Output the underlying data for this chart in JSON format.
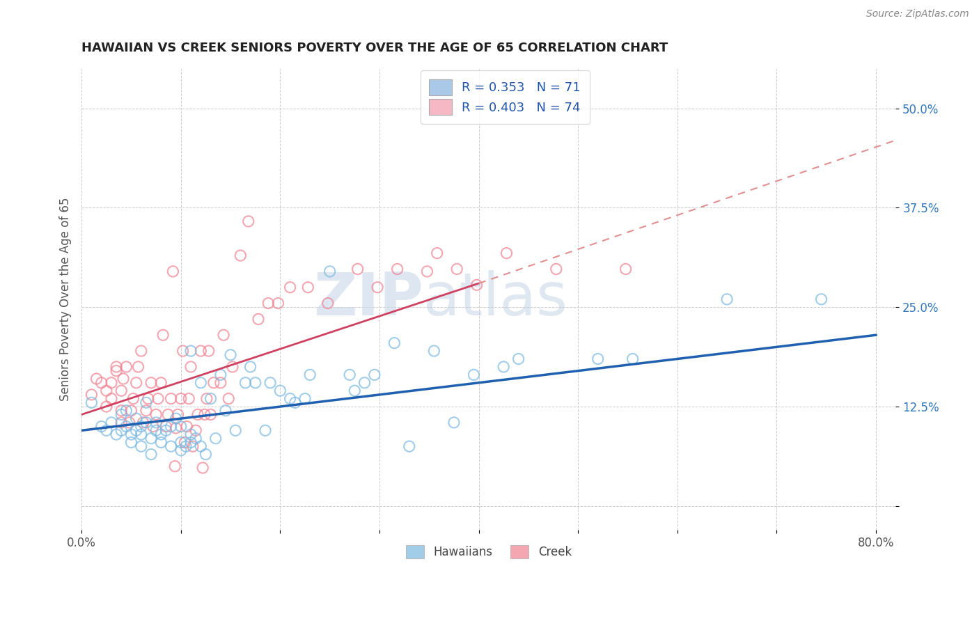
{
  "title": "HAWAIIAN VS CREEK SENIORS POVERTY OVER THE AGE OF 65 CORRELATION CHART",
  "source": "Source: ZipAtlas.com",
  "ylabel": "Seniors Poverty Over the Age of 65",
  "xlim": [
    0.0,
    0.82
  ],
  "ylim": [
    -0.03,
    0.55
  ],
  "ytick_positions": [
    0.0,
    0.125,
    0.25,
    0.375,
    0.5
  ],
  "ytick_labels": [
    "",
    "12.5%",
    "25.0%",
    "37.5%",
    "50.0%"
  ],
  "xtick_positions": [
    0.0,
    0.1,
    0.2,
    0.3,
    0.4,
    0.5,
    0.6,
    0.7,
    0.8
  ],
  "xticklabels": [
    "0.0%",
    "",
    "",
    "",
    "",
    "",
    "",
    "",
    "80.0%"
  ],
  "legend_entries": [
    {
      "label": "R = 0.353   N = 71",
      "color": "#aac9e8"
    },
    {
      "label": "R = 0.403   N = 74",
      "color": "#f5b8c4"
    }
  ],
  "hawaiians_color": "#7ab8e0",
  "creek_color": "#f08090",
  "hawaiians_line_color": "#2060b0",
  "creek_line_solid_color": "#d04060",
  "creek_line_dash_color": "#e09090",
  "watermark_zip": "ZIP",
  "watermark_atlas": "atlas",
  "hawaiians_scatter": [
    [
      0.01,
      0.13
    ],
    [
      0.02,
      0.1
    ],
    [
      0.025,
      0.095
    ],
    [
      0.03,
      0.105
    ],
    [
      0.035,
      0.09
    ],
    [
      0.04,
      0.095
    ],
    [
      0.04,
      0.115
    ],
    [
      0.045,
      0.1
    ],
    [
      0.045,
      0.12
    ],
    [
      0.05,
      0.08
    ],
    [
      0.05,
      0.09
    ],
    [
      0.055,
      0.095
    ],
    [
      0.055,
      0.11
    ],
    [
      0.06,
      0.075
    ],
    [
      0.06,
      0.09
    ],
    [
      0.06,
      0.1
    ],
    [
      0.065,
      0.105
    ],
    [
      0.065,
      0.13
    ],
    [
      0.07,
      0.065
    ],
    [
      0.07,
      0.085
    ],
    [
      0.075,
      0.095
    ],
    [
      0.075,
      0.105
    ],
    [
      0.08,
      0.08
    ],
    [
      0.08,
      0.09
    ],
    [
      0.085,
      0.095
    ],
    [
      0.09,
      0.075
    ],
    [
      0.09,
      0.1
    ],
    [
      0.095,
      0.11
    ],
    [
      0.1,
      0.07
    ],
    [
      0.1,
      0.08
    ],
    [
      0.1,
      0.1
    ],
    [
      0.105,
      0.075
    ],
    [
      0.11,
      0.08
    ],
    [
      0.11,
      0.09
    ],
    [
      0.11,
      0.195
    ],
    [
      0.115,
      0.085
    ],
    [
      0.12,
      0.075
    ],
    [
      0.12,
      0.155
    ],
    [
      0.125,
      0.065
    ],
    [
      0.13,
      0.135
    ],
    [
      0.135,
      0.085
    ],
    [
      0.14,
      0.165
    ],
    [
      0.145,
      0.12
    ],
    [
      0.15,
      0.19
    ],
    [
      0.155,
      0.095
    ],
    [
      0.165,
      0.155
    ],
    [
      0.17,
      0.175
    ],
    [
      0.175,
      0.155
    ],
    [
      0.185,
      0.095
    ],
    [
      0.19,
      0.155
    ],
    [
      0.2,
      0.145
    ],
    [
      0.21,
      0.135
    ],
    [
      0.215,
      0.13
    ],
    [
      0.225,
      0.135
    ],
    [
      0.23,
      0.165
    ],
    [
      0.25,
      0.295
    ],
    [
      0.27,
      0.165
    ],
    [
      0.275,
      0.145
    ],
    [
      0.285,
      0.155
    ],
    [
      0.295,
      0.165
    ],
    [
      0.315,
      0.205
    ],
    [
      0.33,
      0.075
    ],
    [
      0.355,
      0.195
    ],
    [
      0.375,
      0.105
    ],
    [
      0.395,
      0.165
    ],
    [
      0.425,
      0.175
    ],
    [
      0.44,
      0.185
    ],
    [
      0.52,
      0.185
    ],
    [
      0.555,
      0.185
    ],
    [
      0.65,
      0.26
    ],
    [
      0.745,
      0.26
    ]
  ],
  "creek_scatter": [
    [
      0.01,
      0.14
    ],
    [
      0.015,
      0.16
    ],
    [
      0.02,
      0.155
    ],
    [
      0.025,
      0.125
    ],
    [
      0.025,
      0.145
    ],
    [
      0.03,
      0.135
    ],
    [
      0.03,
      0.155
    ],
    [
      0.035,
      0.17
    ],
    [
      0.035,
      0.175
    ],
    [
      0.04,
      0.105
    ],
    [
      0.04,
      0.12
    ],
    [
      0.04,
      0.145
    ],
    [
      0.042,
      0.16
    ],
    [
      0.045,
      0.175
    ],
    [
      0.048,
      0.105
    ],
    [
      0.05,
      0.12
    ],
    [
      0.052,
      0.135
    ],
    [
      0.055,
      0.155
    ],
    [
      0.057,
      0.175
    ],
    [
      0.06,
      0.195
    ],
    [
      0.062,
      0.105
    ],
    [
      0.065,
      0.12
    ],
    [
      0.067,
      0.135
    ],
    [
      0.07,
      0.155
    ],
    [
      0.072,
      0.1
    ],
    [
      0.075,
      0.115
    ],
    [
      0.077,
      0.135
    ],
    [
      0.08,
      0.155
    ],
    [
      0.082,
      0.215
    ],
    [
      0.085,
      0.1
    ],
    [
      0.087,
      0.115
    ],
    [
      0.09,
      0.135
    ],
    [
      0.092,
      0.295
    ],
    [
      0.094,
      0.05
    ],
    [
      0.095,
      0.098
    ],
    [
      0.097,
      0.115
    ],
    [
      0.1,
      0.135
    ],
    [
      0.102,
      0.195
    ],
    [
      0.104,
      0.08
    ],
    [
      0.106,
      0.1
    ],
    [
      0.108,
      0.135
    ],
    [
      0.11,
      0.175
    ],
    [
      0.112,
      0.075
    ],
    [
      0.115,
      0.095
    ],
    [
      0.117,
      0.115
    ],
    [
      0.12,
      0.195
    ],
    [
      0.122,
      0.048
    ],
    [
      0.124,
      0.115
    ],
    [
      0.126,
      0.135
    ],
    [
      0.128,
      0.195
    ],
    [
      0.13,
      0.115
    ],
    [
      0.133,
      0.155
    ],
    [
      0.14,
      0.155
    ],
    [
      0.143,
      0.215
    ],
    [
      0.148,
      0.135
    ],
    [
      0.152,
      0.175
    ],
    [
      0.16,
      0.315
    ],
    [
      0.168,
      0.358
    ],
    [
      0.178,
      0.235
    ],
    [
      0.188,
      0.255
    ],
    [
      0.198,
      0.255
    ],
    [
      0.21,
      0.275
    ],
    [
      0.228,
      0.275
    ],
    [
      0.248,
      0.255
    ],
    [
      0.278,
      0.298
    ],
    [
      0.298,
      0.275
    ],
    [
      0.318,
      0.298
    ],
    [
      0.348,
      0.295
    ],
    [
      0.358,
      0.318
    ],
    [
      0.378,
      0.298
    ],
    [
      0.398,
      0.278
    ],
    [
      0.428,
      0.318
    ],
    [
      0.478,
      0.298
    ],
    [
      0.548,
      0.298
    ]
  ],
  "hawaiians_line": {
    "x0": 0.0,
    "x1": 0.8,
    "y0": 0.095,
    "y1": 0.215
  },
  "creek_line_solid": {
    "x0": 0.0,
    "x1": 0.4,
    "y0": 0.115,
    "y1": 0.28
  },
  "creek_line_dash": {
    "x0": 0.4,
    "x1": 0.82,
    "y0": 0.28,
    "y1": 0.46
  }
}
